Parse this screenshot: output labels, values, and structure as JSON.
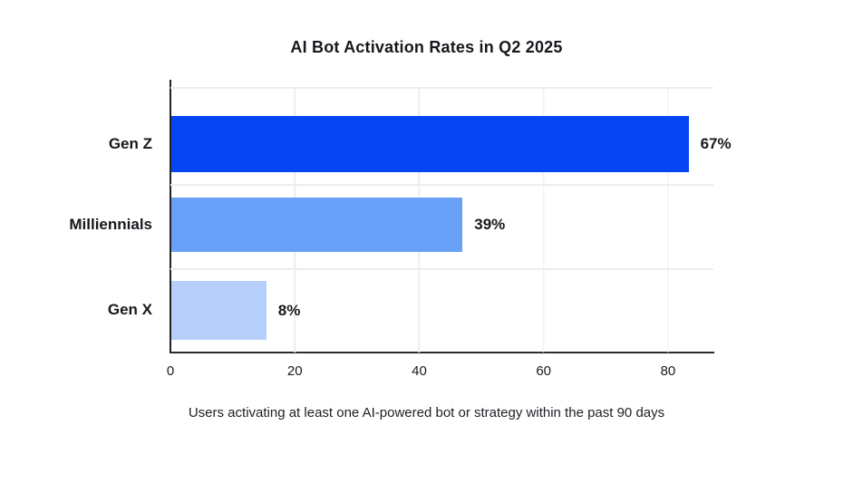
{
  "title": "AI Bot Activation Rates in Q2 2025",
  "caption": "Users activating at least one AI-powered bot or strategy within the past 90 days",
  "chart_data": {
    "type": "bar",
    "orientation": "horizontal",
    "title": "AI Bot Activation Rates in Q2 2025",
    "categories": [
      "Gen Z",
      "Milliennials",
      "Gen X"
    ],
    "values": [
      67,
      39,
      8
    ],
    "value_labels": [
      "67%",
      "39%",
      "8%"
    ],
    "bar_visual_lengths_axis_units": [
      83.3,
      46.9,
      15.3
    ],
    "x_ticks": [
      0,
      20,
      40,
      60,
      80
    ],
    "x_tick_labels": [
      "0",
      "20",
      "40",
      "60",
      "80"
    ],
    "xlim": [
      0,
      87.3
    ],
    "grid": true,
    "legend": false,
    "xlabel": "",
    "ylabel": "",
    "bar_colors": [
      "#0546f2",
      "#6aa1f8",
      "#b6cffa"
    ],
    "footnote": "Users activating at least one AI-powered bot or strategy within the past 90 days"
  },
  "colors": {
    "background": "#ffffff",
    "gridline": "#ededed",
    "axis": "#222222",
    "text": "#15181c"
  }
}
